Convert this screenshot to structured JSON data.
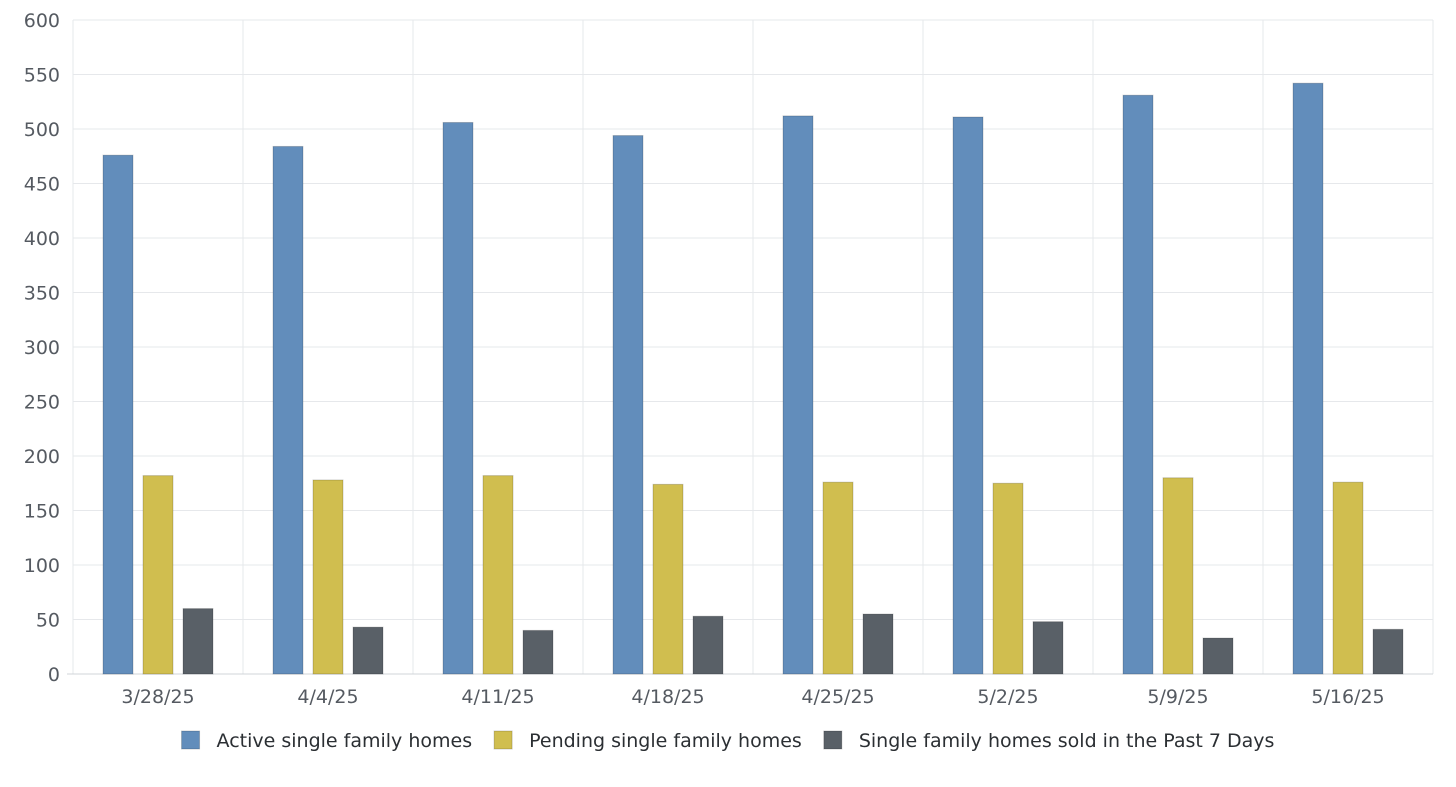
{
  "chart_data": {
    "type": "bar",
    "title": "",
    "xlabel": "",
    "ylabel": "",
    "ylim": [
      0,
      600
    ],
    "yticks": [
      0,
      50,
      100,
      150,
      200,
      250,
      300,
      350,
      400,
      450,
      500,
      550,
      600
    ],
    "grid": true,
    "legend_position": "bottom-center",
    "categories": [
      "3/28/25",
      "4/4/25",
      "4/11/25",
      "4/18/25",
      "4/25/25",
      "5/2/25",
      "5/9/25",
      "5/16/25"
    ],
    "series": [
      {
        "name": "Active single family homes",
        "color": "#628dbb",
        "values": [
          476,
          484,
          506,
          494,
          512,
          511,
          531,
          542
        ]
      },
      {
        "name": "Pending single family homes",
        "color": "#d0be4f",
        "values": [
          182,
          178,
          182,
          174,
          176,
          175,
          180,
          176
        ]
      },
      {
        "name": "Single family homes sold in the Past 7 Days",
        "color": "#596067",
        "values": [
          60,
          43,
          40,
          53,
          55,
          48,
          33,
          41
        ]
      }
    ]
  }
}
